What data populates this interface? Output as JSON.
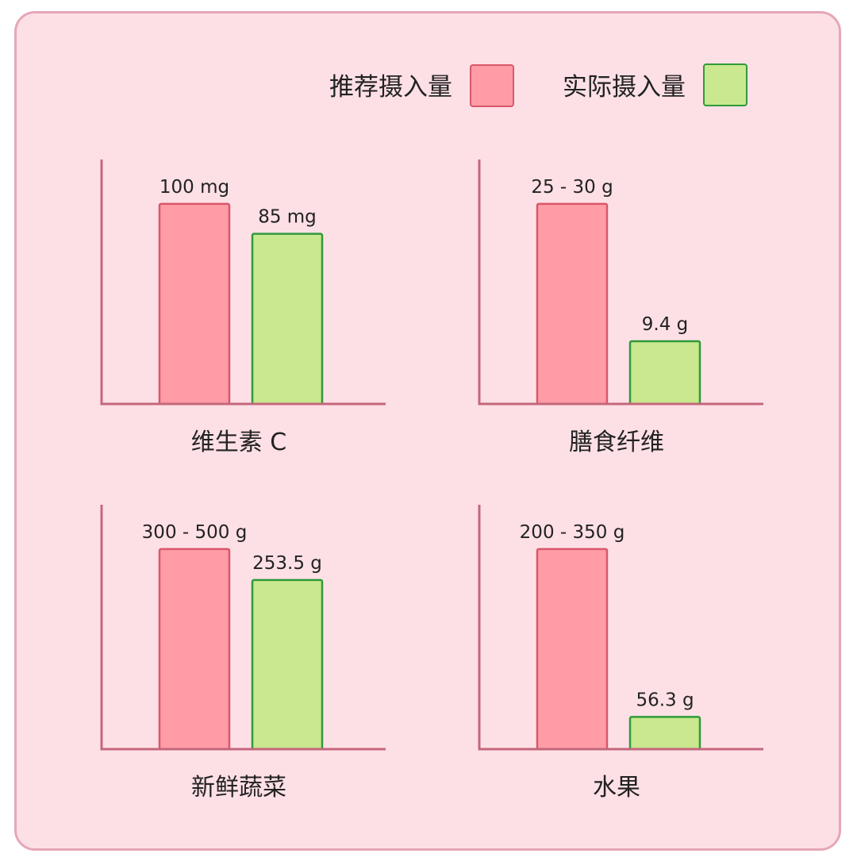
{
  "legend": {
    "recommended": {
      "label": "推荐摄入量",
      "fill": "#ff9ca6",
      "stroke": "#d9576a"
    },
    "actual": {
      "label": "实际摄入量",
      "fill": "#c9e88f",
      "stroke": "#2f9a3a"
    }
  },
  "colors": {
    "axis": "#c4677c",
    "background": "#fde0e6",
    "border": "#e5a7b8"
  },
  "chart_data": [
    {
      "type": "bar",
      "categories": [
        "维生素 C"
      ],
      "series": [
        {
          "name": "推荐摄入量",
          "values": [
            100
          ],
          "label": "100 mg"
        },
        {
          "name": "实际摄入量",
          "values": [
            85
          ],
          "label": "85 mg"
        }
      ],
      "unit": "mg",
      "ylim": [
        0,
        115
      ]
    },
    {
      "type": "bar",
      "categories": [
        "膳食纤维"
      ],
      "series": [
        {
          "name": "推荐摄入量",
          "values": [
            30
          ],
          "label": "25 - 30 g"
        },
        {
          "name": "实际摄入量",
          "values": [
            9.4
          ],
          "label": "9.4 g"
        }
      ],
      "unit": "g",
      "ylim": [
        0,
        34.5
      ]
    },
    {
      "type": "bar",
      "categories": [
        "新鲜蔬菜"
      ],
      "series": [
        {
          "name": "推荐摄入量",
          "values": [
            300
          ],
          "label": "300 - 500 g"
        },
        {
          "name": "实际摄入量",
          "values": [
            253.5
          ],
          "label": "253.5 g"
        }
      ],
      "unit": "g",
      "ylim": [
        0,
        345
      ]
    },
    {
      "type": "bar",
      "categories": [
        "水果"
      ],
      "series": [
        {
          "name": "推荐摄入量",
          "values": [
            350
          ],
          "label": "200 - 350 g"
        },
        {
          "name": "实际摄入量",
          "values": [
            56.3
          ],
          "label": "56.3 g"
        }
      ],
      "unit": "g",
      "ylim": [
        0,
        402.5
      ]
    }
  ]
}
